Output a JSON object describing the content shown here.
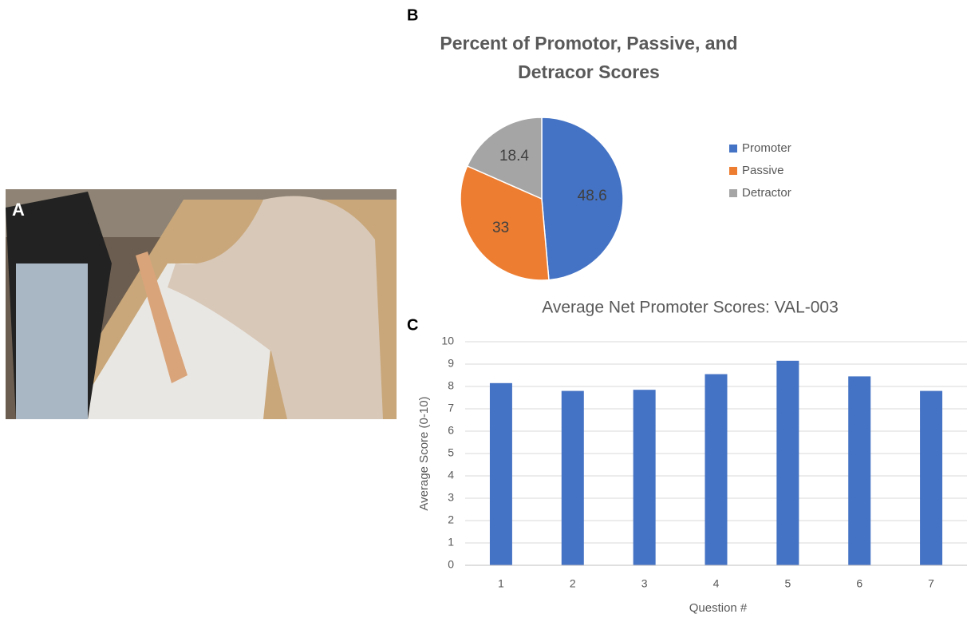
{
  "figure": {
    "photo_label": "A"
  },
  "chart_data": [
    {
      "type": "pie",
      "panel": "B",
      "title": [
        "Percent of Promotor, Passive, and",
        "Detracor Scores"
      ],
      "categories": [
        "Promoter",
        "Passive",
        "Detractor"
      ],
      "values": [
        48.6,
        33,
        18.4
      ],
      "colors": [
        "#4472c4",
        "#ed7d31",
        "#a5a5a5"
      ],
      "legend": "right"
    },
    {
      "type": "bar",
      "panel": "C",
      "title": "Average Net Promoter Scores: VAL-003",
      "x_label": "Question #",
      "y_label": "Average Score (0-10)",
      "categories": [
        "1",
        "2",
        "3",
        "4",
        "5",
        "6",
        "7"
      ],
      "values": [
        8.15,
        7.8,
        7.85,
        8.55,
        9.15,
        8.45,
        7.8
      ],
      "color": "#4472c4",
      "ylim": [
        0,
        10
      ],
      "yticks": [
        0,
        1,
        2,
        3,
        4,
        5,
        6,
        7,
        8,
        9,
        10
      ],
      "grid": true
    }
  ]
}
